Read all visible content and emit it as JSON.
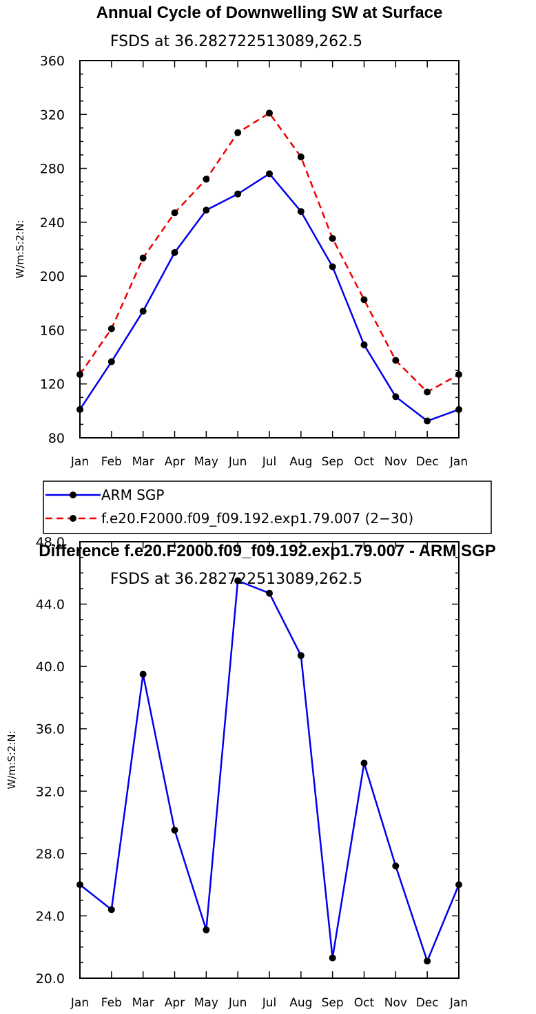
{
  "chart_data": [
    {
      "type": "line",
      "title": "Annual Cycle of Downwelling SW at Surface",
      "subtitle": "FSDS at 36.282722513089,262.5",
      "xlabel": "",
      "ylabel": "W/m:S:2:N:",
      "categories": [
        "Jan",
        "Feb",
        "Mar",
        "Apr",
        "May",
        "Jun",
        "Jul",
        "Aug",
        "Sep",
        "Oct",
        "Nov",
        "Dec",
        "Jan"
      ],
      "ylim": [
        80,
        360
      ],
      "yticks": [
        "80",
        "120",
        "160",
        "200",
        "240",
        "280",
        "320",
        "360"
      ],
      "series": [
        {
          "name": "ARM SGP",
          "color": "#0000ee",
          "dash": "solid",
          "values": [
            101,
            136.5,
            174,
            217.5,
            249,
            261,
            276,
            248,
            207,
            149,
            110.5,
            92.5,
            101
          ]
        },
        {
          "name": "f.e20.F2000.f09_f09.192.exp1.79.007 (2−30)",
          "color": "#ee0000",
          "dash": "dashed",
          "values": [
            127,
            161,
            213.5,
            247,
            272,
            306.5,
            321,
            288.5,
            228,
            182.5,
            137.5,
            114,
            127
          ]
        }
      ],
      "legend": "below"
    },
    {
      "type": "line",
      "title": "Difference f.e20.F2000.f09_f09.192.exp1.79.007 - ARM SGP",
      "subtitle": "FSDS at 36.282722513089,262.5",
      "xlabel": "",
      "ylabel": "W/m:S:2:N:",
      "categories": [
        "Jan",
        "Feb",
        "Mar",
        "Apr",
        "May",
        "Jun",
        "Jul",
        "Aug",
        "Sep",
        "Oct",
        "Nov",
        "Dec",
        "Jan"
      ],
      "ylim": [
        20,
        48
      ],
      "yticks": [
        "20.0",
        "24.0",
        "28.0",
        "32.0",
        "36.0",
        "40.0",
        "44.0",
        "48.0"
      ],
      "series": [
        {
          "name": "Difference",
          "color": "#0000ee",
          "dash": "solid",
          "values": [
            26.0,
            24.4,
            39.5,
            29.5,
            23.1,
            45.5,
            44.7,
            40.7,
            21.3,
            33.8,
            27.2,
            21.1,
            26.0
          ]
        }
      ]
    }
  ]
}
